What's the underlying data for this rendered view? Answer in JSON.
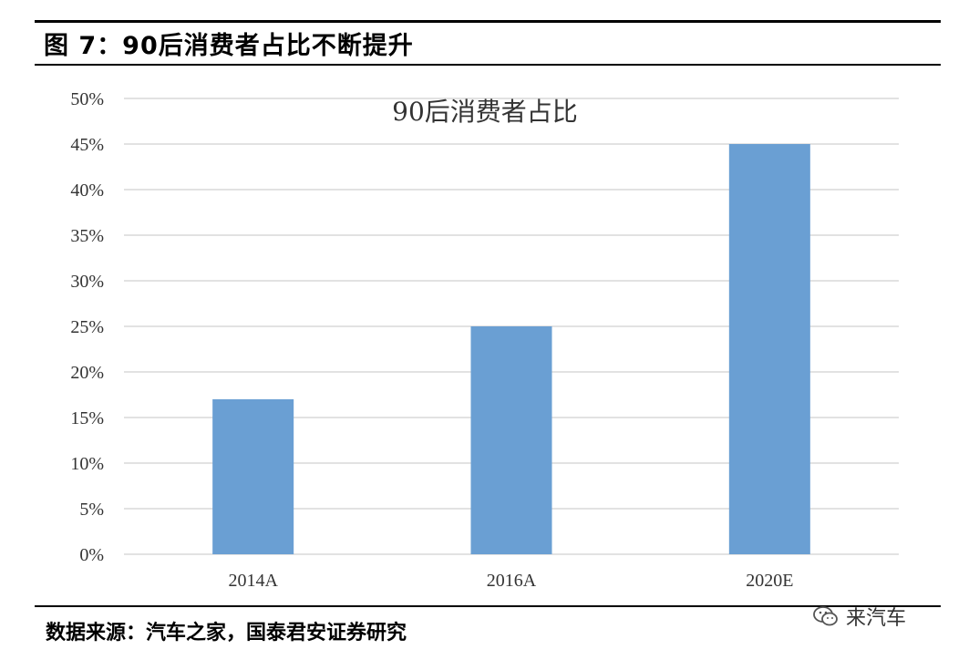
{
  "figure": {
    "title": "图 7：90后消费者占比不断提升",
    "source": "数据来源：汽车之家，国泰君安证券研究",
    "watermark": "来汽车"
  },
  "colors": {
    "bar": "#6a9fd3",
    "grid": "#d9d9d9"
  },
  "chart_data": {
    "type": "bar",
    "title": "90后消费者占比",
    "categories": [
      "2014A",
      "2016A",
      "2020E"
    ],
    "values": [
      0.17,
      0.25,
      0.45
    ],
    "ylim": [
      0,
      0.5
    ],
    "yticks": [
      "0%",
      "5%",
      "10%",
      "15%",
      "20%",
      "25%",
      "30%",
      "35%",
      "40%",
      "45%",
      "50%"
    ],
    "grid": true,
    "legend": "none"
  }
}
